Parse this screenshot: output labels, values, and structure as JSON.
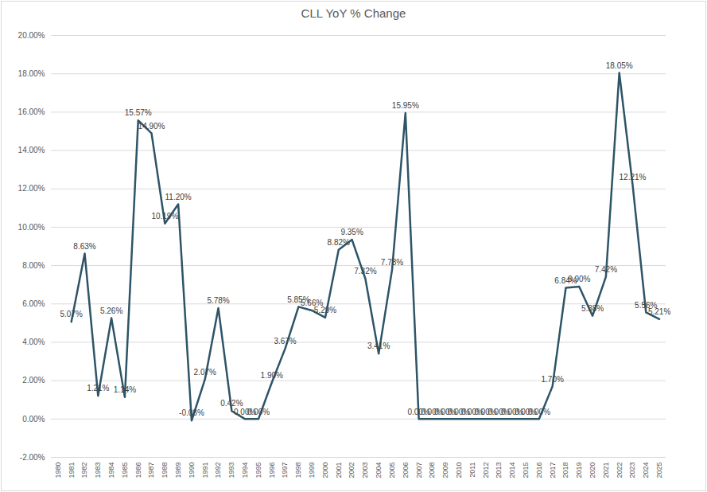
{
  "chart_data": {
    "type": "line",
    "title": "CLL YoY % Change",
    "categories": [
      "1980",
      "1981",
      "1982",
      "1983",
      "1984",
      "1985",
      "1986",
      "1987",
      "1988",
      "1989",
      "1990",
      "1991",
      "1992",
      "1993",
      "1994",
      "1995",
      "1996",
      "1997",
      "1998",
      "1999",
      "2000",
      "2001",
      "2002",
      "2003",
      "2004",
      "2005",
      "2006",
      "2007",
      "2008",
      "2009",
      "2010",
      "2011",
      "2012",
      "2013",
      "2014",
      "2015",
      "2016",
      "2017",
      "2018",
      "2019",
      "2020",
      "2021",
      "2022",
      "2023",
      "2024",
      "2025"
    ],
    "values": [
      null,
      5.07,
      8.63,
      1.21,
      5.26,
      1.14,
      15.57,
      14.9,
      10.19,
      11.2,
      -0.08,
      2.07,
      5.78,
      0.42,
      0.0,
      0.0,
      1.9,
      3.67,
      5.85,
      5.66,
      5.29,
      8.82,
      9.35,
      7.32,
      3.41,
      7.78,
      15.95,
      0.0,
      0.0,
      0.0,
      0.0,
      0.0,
      0.0,
      0.0,
      0.0,
      0.0,
      0.0,
      1.7,
      6.84,
      6.9,
      5.38,
      7.42,
      18.05,
      12.21,
      5.56,
      5.21
    ],
    "value_labels": [
      null,
      "5.07%",
      "8.63%",
      "1.21%",
      "5.26%",
      "1.14%",
      "15.57%",
      "14.90%",
      "10.19%",
      "11.20%",
      "-0.08%",
      "2.07%",
      "5.78%",
      "0.42%",
      "0.00%",
      "0.00%",
      "1.90%",
      "3.67%",
      "5.85%",
      "5.66%",
      "5.29%",
      "8.82%",
      "9.35%",
      "7.32%",
      "3.41%",
      "7.78%",
      "15.95%",
      "0.00%",
      "0.00%",
      "0.00%",
      "0.00%",
      "0.00%",
      "0.00%",
      "0.00%",
      "0.00%",
      "0.00%",
      "0.00%",
      "1.70%",
      "6.84%",
      "6.90%",
      "5.38%",
      "7.42%",
      "18.05%",
      "12.21%",
      "5.56%",
      "5.21%"
    ],
    "color": "#2e5468",
    "ylim": [
      -2,
      20
    ],
    "yticks": [
      {
        "value": -2,
        "label": "-2.00%"
      },
      {
        "value": 0,
        "label": "0.00%"
      },
      {
        "value": 2,
        "label": "2.00%"
      },
      {
        "value": 4,
        "label": "4.00%"
      },
      {
        "value": 6,
        "label": "6.00%"
      },
      {
        "value": 8,
        "label": "8.00%"
      },
      {
        "value": 10,
        "label": "10.00%"
      },
      {
        "value": 12,
        "label": "12.00%"
      },
      {
        "value": 14,
        "label": "14.00%"
      },
      {
        "value": 16,
        "label": "16.00%"
      },
      {
        "value": 18,
        "label": "18.00%"
      },
      {
        "value": 20,
        "label": "20.00%"
      }
    ],
    "grid": true,
    "data_labels": true
  }
}
